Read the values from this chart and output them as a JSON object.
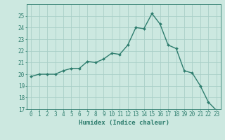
{
  "x": [
    0,
    1,
    2,
    3,
    4,
    5,
    6,
    7,
    8,
    9,
    10,
    11,
    12,
    13,
    14,
    15,
    16,
    17,
    18,
    19,
    20,
    21,
    22,
    23
  ],
  "y": [
    19.8,
    20.0,
    20.0,
    20.0,
    20.3,
    20.5,
    20.5,
    21.1,
    21.0,
    21.3,
    21.8,
    21.7,
    22.5,
    24.0,
    23.9,
    25.2,
    24.3,
    22.5,
    22.2,
    20.3,
    20.1,
    19.0,
    17.6,
    16.9
  ],
  "line_color": "#2e7d6e",
  "marker": "D",
  "marker_size": 2,
  "bg_color": "#cce8e0",
  "grid_color": "#aacfc8",
  "xlabel": "Humidex (Indice chaleur)",
  "ylim": [
    17,
    26
  ],
  "xlim": [
    -0.5,
    23.5
  ],
  "yticks": [
    17,
    18,
    19,
    20,
    21,
    22,
    23,
    24,
    25
  ],
  "xticks": [
    0,
    1,
    2,
    3,
    4,
    5,
    6,
    7,
    8,
    9,
    10,
    11,
    12,
    13,
    14,
    15,
    16,
    17,
    18,
    19,
    20,
    21,
    22,
    23
  ],
  "xlabel_fontsize": 6.5,
  "tick_fontsize": 5.5
}
